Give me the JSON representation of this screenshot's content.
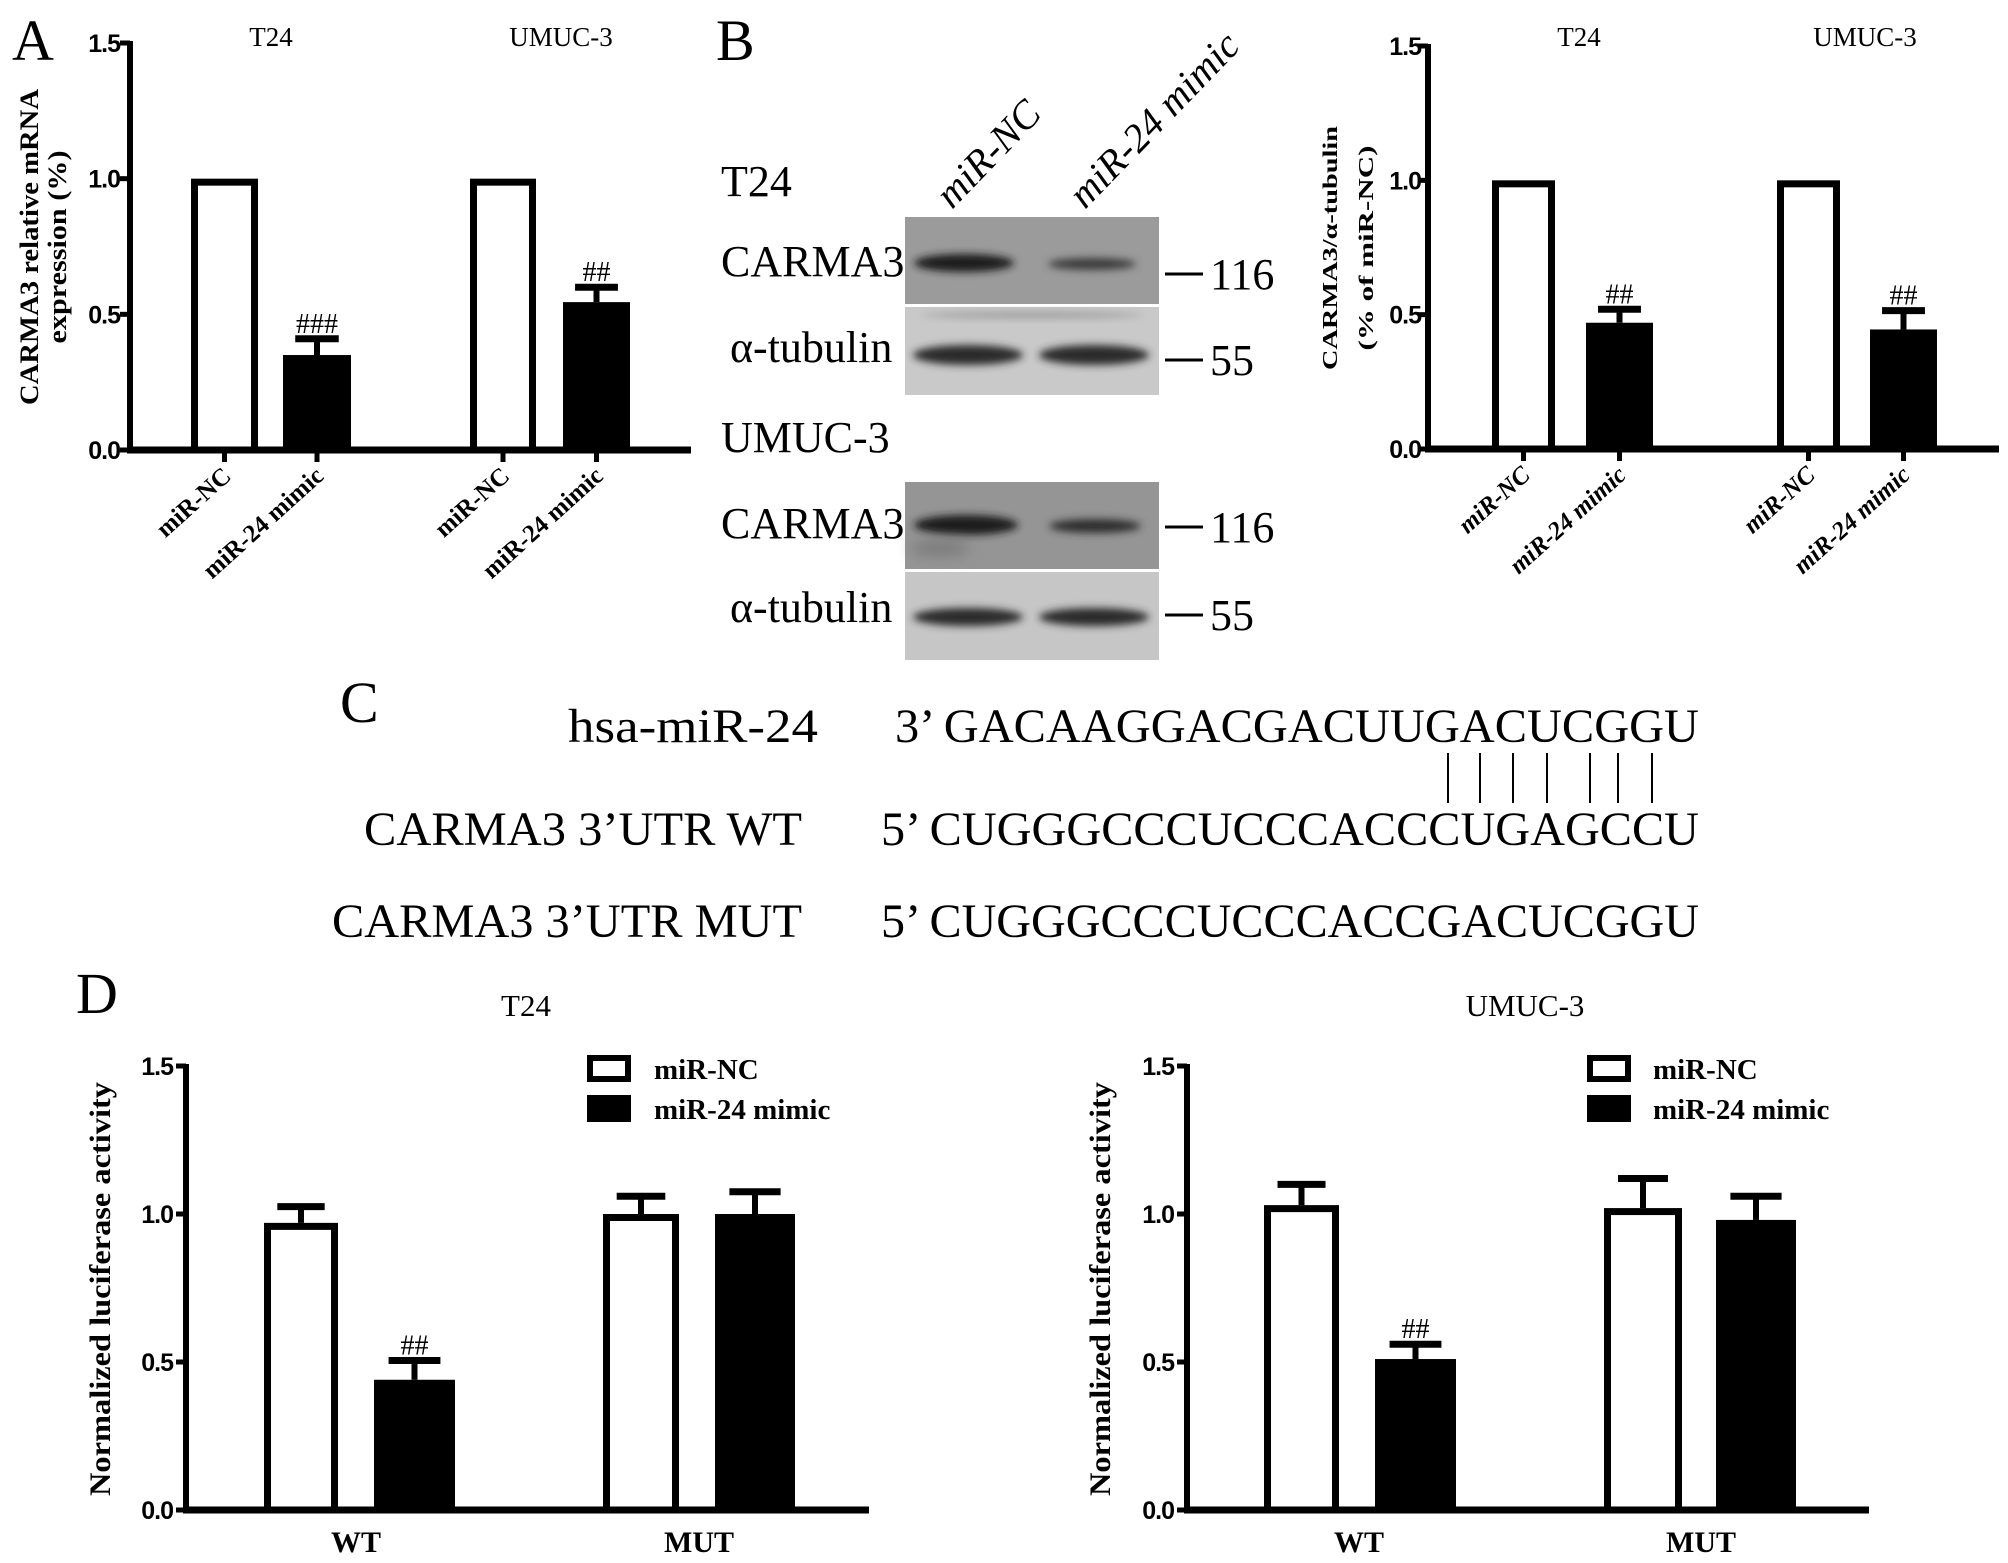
{
  "panels": {
    "A": {
      "letter": "A"
    },
    "B": {
      "letter": "B",
      "lanes": [
        "miR-NC",
        "miR-24 mimic"
      ],
      "blots": [
        {
          "cell_line": "T24",
          "rows": [
            {
              "protein": "CARMA3",
              "marker": "116"
            },
            {
              "protein": "α-tubulin",
              "marker": "55"
            }
          ]
        },
        {
          "cell_line": "UMUC-3",
          "rows": [
            {
              "protein": "CARMA3",
              "marker": "116"
            },
            {
              "protein": "α-tubulin",
              "marker": "55"
            }
          ]
        }
      ]
    },
    "C": {
      "letter": "C",
      "rows": [
        {
          "label": "hsa-miR-24",
          "sequence": "3’ GACAAGGACGACUUGACUCGGU"
        },
        {
          "label": "CARMA3 3’UTR WT",
          "sequence": "5’ CUGGGCCCUCCCACCCUGAGCCU"
        },
        {
          "label": "CARMA3 3’UTR MUT",
          "sequence": "5’ CUGGGCCCUCCCACCGACUCGGU"
        }
      ],
      "pairing_lines": 7
    },
    "D": {
      "letter": "D"
    }
  },
  "chart_data": [
    {
      "type": "bar",
      "panel": "A",
      "ylabel": [
        "CARMA3 relative mRNA",
        "expression (%)"
      ],
      "ylim": [
        0,
        1.5
      ],
      "yticks": [
        0,
        0.5,
        1.0,
        1.5
      ],
      "ytick_labels": [
        "0.0",
        "0.5",
        "1.0",
        "1.5"
      ],
      "grid": false,
      "groups": [
        {
          "title": "T24",
          "bars": [
            {
              "label": "miR-NC",
              "value": 1.0,
              "error": 0,
              "fill": "#ffffff",
              "annotation": ""
            },
            {
              "label": "miR-24 mimic",
              "value": 0.35,
              "error": 0.06,
              "fill": "#000000",
              "annotation": "###"
            }
          ]
        },
        {
          "title": "UMUC-3",
          "bars": [
            {
              "label": "miR-NC",
              "value": 1.0,
              "error": 0,
              "fill": "#ffffff",
              "annotation": ""
            },
            {
              "label": "miR-24 mimic",
              "value": 0.545,
              "error": 0.055,
              "fill": "#000000",
              "annotation": "##"
            }
          ]
        }
      ]
    },
    {
      "type": "bar",
      "panel": "B",
      "ylabel": [
        "CARMA3/α-tubulin",
        "(% of miR-NC)"
      ],
      "ylim": [
        0,
        1.5
      ],
      "yticks": [
        0,
        0.5,
        1.0,
        1.5
      ],
      "ytick_labels": [
        "0.0",
        "0.5",
        "1.0",
        "1.5"
      ],
      "grid": false,
      "groups": [
        {
          "title": "T24",
          "bars": [
            {
              "label": "miR-NC",
              "value": 1.0,
              "error": 0,
              "fill": "#ffffff",
              "annotation": ""
            },
            {
              "label": "miR-24 mimic",
              "value": 0.47,
              "error": 0.05,
              "fill": "#000000",
              "annotation": "##"
            }
          ]
        },
        {
          "title": "UMUC-3",
          "bars": [
            {
              "label": "miR-NC",
              "value": 1.0,
              "error": 0,
              "fill": "#ffffff",
              "annotation": ""
            },
            {
              "label": "miR-24 mimic",
              "value": 0.445,
              "error": 0.07,
              "fill": "#000000",
              "annotation": "##"
            }
          ]
        }
      ]
    },
    {
      "type": "bar",
      "panel": "D",
      "title": "T24",
      "ylabel": "Normalized luciferase activity",
      "ylim": [
        0,
        1.5
      ],
      "yticks": [
        0,
        0.5,
        1.0,
        1.5
      ],
      "ytick_labels": [
        "0.0",
        "0.5",
        "1.0",
        "1.5"
      ],
      "grid": false,
      "legend_position": "top-right",
      "categories": [
        "WT",
        "MUT"
      ],
      "series": [
        {
          "name": "miR-NC",
          "fill": "#ffffff",
          "values": [
            0.97,
            1.0
          ],
          "errors": [
            0.055,
            0.06
          ],
          "annotations": [
            "",
            ""
          ]
        },
        {
          "name": "miR-24 mimic",
          "fill": "#000000",
          "values": [
            0.44,
            1.0
          ],
          "errors": [
            0.065,
            0.075
          ],
          "annotations": [
            "##",
            ""
          ]
        }
      ]
    },
    {
      "type": "bar",
      "panel": "D",
      "title": "UMUC-3",
      "ylabel": "Normalized luciferase activity",
      "ylim": [
        0,
        1.5
      ],
      "yticks": [
        0,
        0.5,
        1.0,
        1.5
      ],
      "ytick_labels": [
        "0.0",
        "0.5",
        "1.0",
        "1.5"
      ],
      "grid": false,
      "legend_position": "top-right",
      "categories": [
        "WT",
        "MUT"
      ],
      "series": [
        {
          "name": "miR-NC",
          "fill": "#ffffff",
          "values": [
            1.03,
            1.02
          ],
          "errors": [
            0.07,
            0.1
          ],
          "annotations": [
            "",
            ""
          ]
        },
        {
          "name": "miR-24 mimic",
          "fill": "#000000",
          "values": [
            0.51,
            0.98
          ],
          "errors": [
            0.05,
            0.08
          ],
          "annotations": [
            "##",
            ""
          ]
        }
      ]
    }
  ]
}
